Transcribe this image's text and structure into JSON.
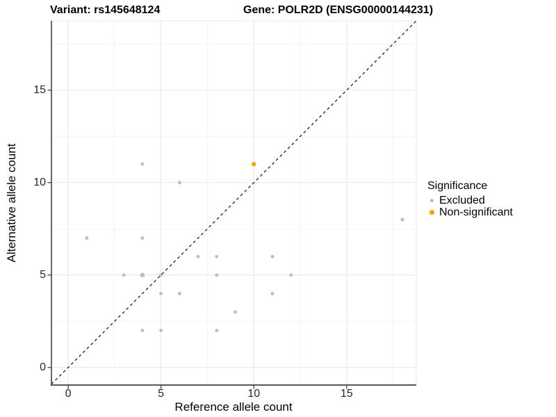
{
  "titles": {
    "variant": "Variant: rs145648124",
    "gene": "Gene: POLR2D (ENSG00000144231)"
  },
  "chart_data": {
    "type": "scatter",
    "xlabel": "Reference allele count",
    "ylabel": "Alternative allele count",
    "xlim": [
      -0.9,
      18.75
    ],
    "ylim": [
      -0.95,
      18.75
    ],
    "x_ticks": [
      0,
      5,
      10,
      15
    ],
    "y_ticks": [
      0,
      5,
      10,
      15
    ],
    "x_minor_ticks": [
      2.5,
      7.5,
      12.5,
      17.5
    ],
    "y_minor_ticks": [
      2.5,
      7.5,
      12.5,
      17.5
    ],
    "grid": true,
    "reference_line": {
      "type": "identity",
      "slope": 1,
      "intercept": 0,
      "style": "dashed"
    },
    "legend": {
      "title": "Significance",
      "position": "right"
    },
    "series": [
      {
        "name": "Excluded",
        "color": "#BFBFBF",
        "point_radius": 2.5,
        "points": [
          [
            1,
            7
          ],
          [
            3,
            5
          ],
          [
            4,
            2
          ],
          [
            4,
            5,
            3.3
          ],
          [
            4,
            7
          ],
          [
            4,
            11
          ],
          [
            5,
            2
          ],
          [
            5,
            4
          ],
          [
            5,
            5
          ],
          [
            6,
            4
          ],
          [
            6,
            10
          ],
          [
            7,
            6
          ],
          [
            8,
            2
          ],
          [
            8,
            5
          ],
          [
            8,
            6
          ],
          [
            9,
            3
          ],
          [
            11,
            4
          ],
          [
            11,
            6
          ],
          [
            12,
            5
          ],
          [
            18,
            8
          ]
        ]
      },
      {
        "name": "Non-significant",
        "color": "#FFA500",
        "point_radius": 3.2,
        "points": [
          [
            10,
            11
          ]
        ]
      }
    ],
    "colors": {
      "grid_major": "#E8E8E8",
      "grid_minor": "#F3F3F3",
      "axis_line": "#404040",
      "dashed_line": "#1A1A1A",
      "tick_text": "#262626"
    }
  }
}
